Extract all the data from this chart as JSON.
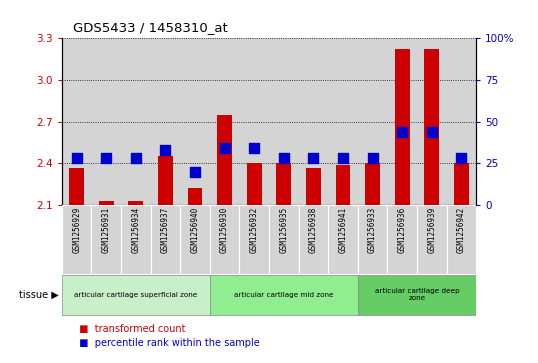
{
  "title": "GDS5433 / 1458310_at",
  "samples": [
    "GSM1256929",
    "GSM1256931",
    "GSM1256934",
    "GSM1256937",
    "GSM1256940",
    "GSM1256930",
    "GSM1256932",
    "GSM1256935",
    "GSM1256938",
    "GSM1256941",
    "GSM1256933",
    "GSM1256936",
    "GSM1256939",
    "GSM1256942"
  ],
  "transformed_count": [
    2.37,
    2.13,
    2.13,
    2.45,
    2.22,
    2.75,
    2.4,
    2.4,
    2.37,
    2.39,
    2.4,
    3.22,
    3.22,
    2.4
  ],
  "percentile_rank": [
    28,
    28,
    28,
    33,
    20,
    34,
    34,
    28,
    28,
    28,
    28,
    44,
    44,
    28
  ],
  "ylim_left": [
    2.1,
    3.3
  ],
  "ylim_right": [
    0,
    100
  ],
  "yticks_left": [
    2.1,
    2.4,
    2.7,
    3.0,
    3.3
  ],
  "yticks_right": [
    0,
    25,
    50,
    75,
    100
  ],
  "ytick_labels_left": [
    "2.1",
    "2.4",
    "2.7",
    "3.0",
    "3.3"
  ],
  "ytick_labels_right": [
    "0",
    "25",
    "50",
    "75",
    "100%"
  ],
  "bar_color": "#cc0000",
  "dot_color": "#0000cc",
  "grid_color": "#000000",
  "bg_color": "#d4d4d4",
  "cell_bg": "#d4d4d4",
  "tissue_groups": [
    {
      "label": "articular cartilage superficial zone",
      "start": 0,
      "end": 4,
      "color": "#c8f0c8"
    },
    {
      "label": "articular cartilage mid zone",
      "start": 5,
      "end": 9,
      "color": "#90ee90"
    },
    {
      "label": "articular cartilage deep\nzone",
      "start": 10,
      "end": 13,
      "color": "#66cc66"
    }
  ],
  "legend_items": [
    {
      "label": "transformed count",
      "color": "#cc0000"
    },
    {
      "label": "percentile rank within the sample",
      "color": "#0000cc"
    }
  ],
  "bar_width": 0.5,
  "dot_size": 45
}
